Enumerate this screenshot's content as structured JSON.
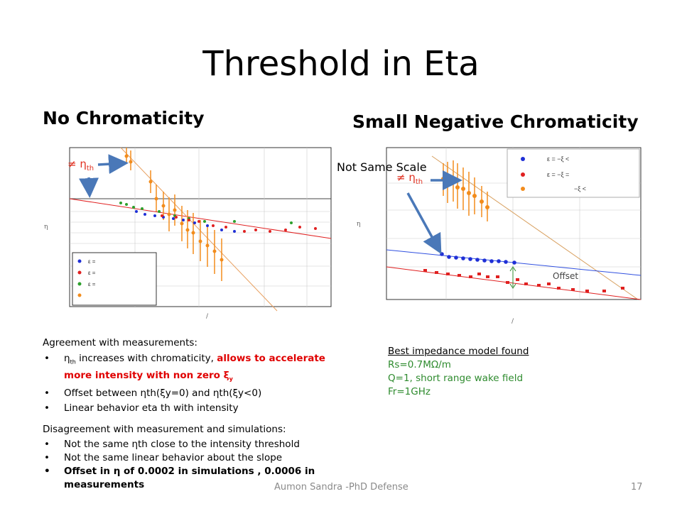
{
  "slide": {
    "title": "Threshold in Eta",
    "left_heading": "No Chromaticity",
    "right_heading": "Small Negative Chromaticity",
    "annotations": {
      "neq_sym": "≠ η",
      "th_sub": "th",
      "not_same_scale": "Not Same Scale",
      "offset": "Offset"
    },
    "left_plot": {
      "y_axis_symbol": "η",
      "x_axis_tick": "/",
      "legend": [
        "ε =",
        "ε =",
        "ε ="
      ]
    },
    "right_plot": {
      "y_axis_symbol": "η",
      "x_axis_tick": "/",
      "legend": [
        "ε = −ξ <",
        "ε = −ξ =",
        "−ξ <"
      ]
    },
    "agreement": {
      "heading": "Agreement with measurements:",
      "b1_a": "η",
      "b1_sub": "th",
      "b1_b": " increases with chromaticity, ",
      "b1_red": "allows to accelerate more intensity with non zero ξ",
      "b1_red_sub": "y",
      "b2": "Offset between ηth(ξy=0) and ηth(ξy<0)",
      "b3": "Linear behavior eta th with intensity"
    },
    "disagreement": {
      "heading": "Disagreement with measurement and simulations:",
      "b1": "Not the same ηth close to the intensity threshold",
      "b2": "Not the same linear behavior about the slope",
      "b3": "Offset in η of 0.0002 in simulations , 0.0006 in measurements"
    },
    "model": {
      "heading": "Best impedance model found",
      "rs": "Rs=0.7MΩ/m",
      "q": "Q=1, short range wake field",
      "fr": "Fr=1GHz"
    },
    "footer": {
      "text": "Aumon Sandra -PhD Defense",
      "page": "17"
    }
  },
  "colors": {
    "blue": "#1f2fd6",
    "red": "#e02020",
    "green": "#2ca02c",
    "orange": "#f28c1c",
    "arrow": "#4a78b8",
    "model_text": "#2e8b2e"
  }
}
